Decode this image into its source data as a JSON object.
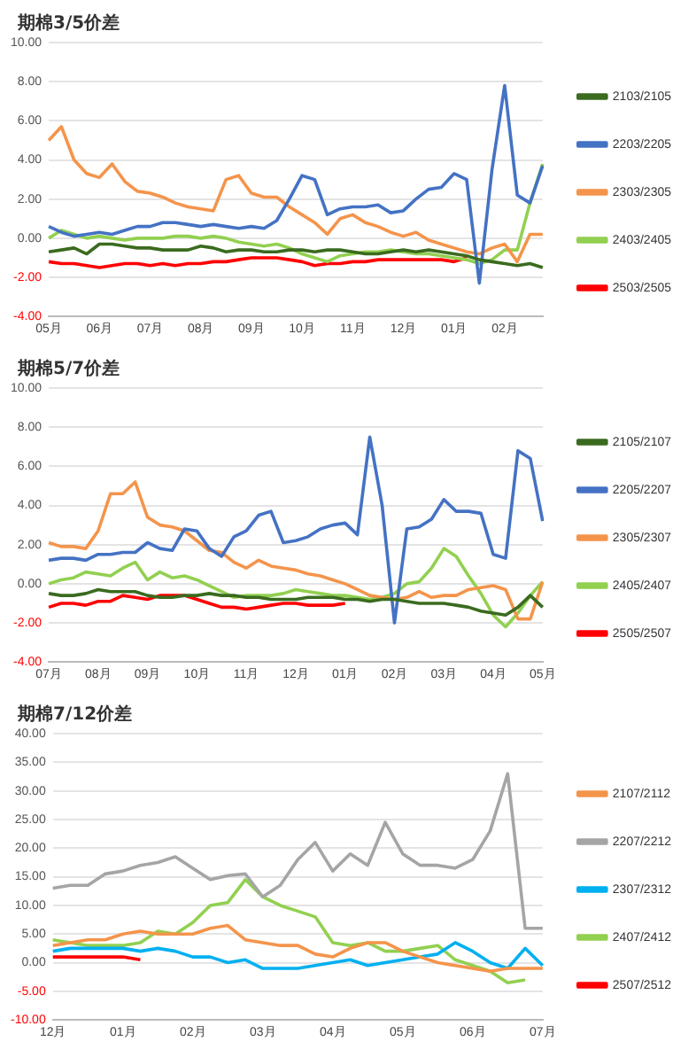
{
  "chart_data": [
    {
      "type": "line",
      "title": "期棉3/5价差",
      "categories": [
        "05月",
        null,
        null,
        null,
        "06月",
        null,
        null,
        null,
        "07月",
        null,
        null,
        null,
        "08月",
        null,
        null,
        null,
        "09月",
        null,
        null,
        null,
        "10月",
        null,
        null,
        null,
        "11月",
        null,
        null,
        null,
        "12月",
        null,
        null,
        null,
        "01月",
        null,
        null,
        null,
        "02月",
        null,
        null,
        null
      ],
      "ylim": [
        -4,
        10
      ],
      "yticks": [
        {
          "value": -4,
          "label": "-4.00"
        },
        {
          "value": -2,
          "label": "-2.00"
        },
        {
          "value": 0,
          "label": "0.00"
        },
        {
          "value": 2,
          "label": "2.00"
        },
        {
          "value": 4,
          "label": "4.00"
        },
        {
          "value": 6,
          "label": "6.00"
        },
        {
          "value": 8,
          "label": "8.00"
        },
        {
          "value": 10,
          "label": "10.00"
        }
      ],
      "grid": "y",
      "legend": "right",
      "marker": "none",
      "series": [
        {
          "name": "2103/2105",
          "color": "#3a6b1f",
          "values": [
            -0.7,
            -0.6,
            -0.5,
            -0.8,
            -0.3,
            -0.3,
            -0.4,
            -0.5,
            -0.5,
            -0.6,
            -0.6,
            -0.6,
            -0.4,
            -0.5,
            -0.7,
            -0.6,
            -0.6,
            -0.7,
            -0.7,
            -0.6,
            -0.6,
            -0.7,
            -0.6,
            -0.6,
            -0.7,
            -0.8,
            -0.8,
            -0.7,
            -0.6,
            -0.7,
            -0.6,
            -0.7,
            -0.8,
            -0.9,
            -1.1,
            -1.2,
            -1.3,
            -1.4,
            -1.3,
            -1.5
          ]
        },
        {
          "name": "2203/2205",
          "color": "#4472c4",
          "values": [
            0.6,
            0.3,
            0.1,
            0.2,
            0.3,
            0.2,
            0.4,
            0.6,
            0.6,
            0.8,
            0.8,
            0.7,
            0.6,
            0.7,
            0.6,
            0.5,
            0.6,
            0.5,
            0.9,
            2.0,
            3.2,
            3.0,
            1.2,
            1.5,
            1.6,
            1.6,
            1.7,
            1.3,
            1.4,
            2.0,
            2.5,
            2.6,
            3.3,
            3.0,
            -2.3,
            3.5,
            7.8,
            2.2,
            1.8,
            3.7
          ]
        },
        {
          "name": "2303/2305",
          "color": "#f4944b",
          "values": [
            5.0,
            5.7,
            4.0,
            3.3,
            3.1,
            3.8,
            2.9,
            2.4,
            2.3,
            2.1,
            1.8,
            1.6,
            1.5,
            1.4,
            3.0,
            3.2,
            2.3,
            2.1,
            2.1,
            1.6,
            1.2,
            0.8,
            0.2,
            1.0,
            1.2,
            0.8,
            0.6,
            0.3,
            0.1,
            0.3,
            -0.1,
            -0.3,
            -0.5,
            -0.7,
            -0.8,
            -0.5,
            -0.3,
            -1.2,
            0.2,
            0.2
          ]
        },
        {
          "name": "2403/2405",
          "color": "#92d050",
          "values": [
            0.0,
            0.4,
            0.2,
            0.0,
            0.1,
            0.0,
            -0.1,
            0.0,
            0.0,
            0.0,
            0.1,
            0.1,
            0.0,
            0.1,
            0.0,
            -0.2,
            -0.3,
            -0.4,
            -0.3,
            -0.5,
            -0.8,
            -1.0,
            -1.2,
            -0.9,
            -0.8,
            -0.7,
            -0.7,
            -0.6,
            -0.7,
            -0.8,
            -0.8,
            -0.9,
            -1.0,
            -1.1,
            -1.3,
            -1.1,
            -0.6,
            -0.6,
            1.8,
            3.8
          ]
        },
        {
          "name": "2503/2505",
          "color": "#ff0000",
          "values": [
            -1.2,
            -1.3,
            -1.3,
            -1.4,
            -1.5,
            -1.4,
            -1.3,
            -1.3,
            -1.4,
            -1.3,
            -1.4,
            -1.3,
            -1.3,
            -1.2,
            -1.2,
            -1.1,
            -1.0,
            -1.0,
            -1.0,
            -1.1,
            -1.2,
            -1.4,
            -1.3,
            -1.3,
            -1.2,
            -1.2,
            -1.1,
            -1.1,
            -1.1,
            -1.1,
            -1.1,
            -1.1,
            -1.2,
            -1.0,
            null,
            null,
            null,
            null,
            null,
            null
          ]
        }
      ]
    },
    {
      "type": "line",
      "title": "期棉5/7价差",
      "categories": [
        "07月",
        null,
        null,
        null,
        "08月",
        null,
        null,
        null,
        "09月",
        null,
        null,
        null,
        "10月",
        null,
        null,
        null,
        "11月",
        null,
        null,
        null,
        "12月",
        null,
        null,
        null,
        "01月",
        null,
        null,
        null,
        "02月",
        null,
        null,
        null,
        "03月",
        null,
        null,
        null,
        "04月",
        null,
        null,
        null,
        "05月"
      ],
      "ylim": [
        -4,
        10
      ],
      "yticks": [
        {
          "value": -4,
          "label": "-4.00"
        },
        {
          "value": -2,
          "label": "-2.00"
        },
        {
          "value": 0,
          "label": "0.00"
        },
        {
          "value": 2,
          "label": "2.00"
        },
        {
          "value": 4,
          "label": "4.00"
        },
        {
          "value": 6,
          "label": "6.00"
        },
        {
          "value": 8,
          "label": "8.00"
        },
        {
          "value": 10,
          "label": "10.00"
        }
      ],
      "grid": "y",
      "legend": "right",
      "marker": "none",
      "series": [
        {
          "name": "2105/2107",
          "color": "#3a6b1f",
          "values": [
            -0.5,
            -0.6,
            -0.6,
            -0.5,
            -0.3,
            -0.4,
            -0.4,
            -0.4,
            -0.6,
            -0.7,
            -0.7,
            -0.6,
            -0.6,
            -0.5,
            -0.6,
            -0.6,
            -0.7,
            -0.7,
            -0.8,
            -0.8,
            -0.8,
            -0.7,
            -0.7,
            -0.7,
            -0.8,
            -0.8,
            -0.9,
            -0.8,
            -0.8,
            -0.9,
            -1.0,
            -1.0,
            -1.0,
            -1.1,
            -1.2,
            -1.4,
            -1.5,
            -1.6,
            -1.2,
            -0.6,
            -1.2
          ]
        },
        {
          "name": "2205/2207",
          "color": "#4472c4",
          "values": [
            1.2,
            1.3,
            1.3,
            1.2,
            1.5,
            1.5,
            1.6,
            1.6,
            2.1,
            1.8,
            1.7,
            2.8,
            2.7,
            1.8,
            1.4,
            2.4,
            2.7,
            3.5,
            3.7,
            2.1,
            2.2,
            2.4,
            2.8,
            3.0,
            3.1,
            2.5,
            7.5,
            4.0,
            -2.0,
            2.8,
            2.9,
            3.3,
            4.3,
            3.7,
            3.7,
            3.6,
            1.5,
            1.3,
            6.8,
            6.4,
            3.2
          ]
        },
        {
          "name": "2305/2307",
          "color": "#f4944b",
          "values": [
            2.1,
            1.9,
            1.9,
            1.8,
            2.7,
            4.6,
            4.6,
            5.2,
            3.4,
            3.0,
            2.9,
            2.7,
            2.2,
            1.7,
            1.6,
            1.1,
            0.8,
            1.2,
            0.9,
            0.8,
            0.7,
            0.5,
            0.4,
            0.2,
            0.0,
            -0.3,
            -0.6,
            -0.7,
            -0.8,
            -0.7,
            -0.4,
            -0.7,
            -0.6,
            -0.6,
            -0.3,
            -0.2,
            -0.1,
            -0.3,
            -1.8,
            -1.8,
            0.1
          ]
        },
        {
          "name": "2405/2407",
          "color": "#92d050",
          "values": [
            0.0,
            0.2,
            0.3,
            0.6,
            0.5,
            0.4,
            0.8,
            1.1,
            0.2,
            0.6,
            0.3,
            0.4,
            0.2,
            -0.1,
            -0.4,
            -0.7,
            -0.6,
            -0.6,
            -0.6,
            -0.5,
            -0.3,
            -0.4,
            -0.5,
            -0.6,
            -0.6,
            -0.7,
            -0.8,
            -0.7,
            -0.5,
            0.0,
            0.1,
            0.8,
            1.8,
            1.4,
            0.4,
            -0.5,
            -1.6,
            -2.2,
            -1.5,
            -0.6,
            0.1
          ]
        },
        {
          "name": "2505/2507",
          "color": "#ff0000",
          "values": [
            -1.2,
            -1.0,
            -1.0,
            -1.1,
            -0.9,
            -0.9,
            -0.6,
            -0.7,
            -0.8,
            -0.6,
            -0.6,
            -0.6,
            -0.8,
            -1.0,
            -1.2,
            -1.2,
            -1.3,
            -1.2,
            -1.1,
            -1.0,
            -1.0,
            -1.1,
            -1.1,
            -1.1,
            -1.0,
            null,
            null,
            null,
            null,
            null,
            null,
            null,
            null,
            null,
            null,
            null,
            null,
            null,
            null,
            null,
            null
          ]
        }
      ]
    },
    {
      "type": "line",
      "title": "期棉7/12价差",
      "categories": [
        "12月",
        null,
        null,
        null,
        "01月",
        null,
        null,
        null,
        "02月",
        null,
        null,
        null,
        "03月",
        null,
        null,
        null,
        "04月",
        null,
        null,
        null,
        "05月",
        null,
        null,
        null,
        "06月",
        null,
        null,
        null,
        "07月"
      ],
      "ylim": [
        -10,
        40
      ],
      "yticks": [
        {
          "value": -10,
          "label": "-10.00"
        },
        {
          "value": -5,
          "label": "-5.00"
        },
        {
          "value": 0,
          "label": "0.00"
        },
        {
          "value": 5,
          "label": "5.00"
        },
        {
          "value": 10,
          "label": "10.00"
        },
        {
          "value": 15,
          "label": "15.00"
        },
        {
          "value": 20,
          "label": "20.00"
        },
        {
          "value": 25,
          "label": "25.00"
        },
        {
          "value": 30,
          "label": "30.00"
        },
        {
          "value": 35,
          "label": "35.00"
        },
        {
          "value": 40,
          "label": "40.00"
        }
      ],
      "grid": "y",
      "legend": "right",
      "marker": "none",
      "series": [
        {
          "name": "2107/2112",
          "color": "#f4944b",
          "values": [
            3.0,
            3.5,
            4.0,
            4.0,
            5.0,
            5.5,
            5.0,
            5.0,
            5.0,
            6.0,
            6.5,
            4.0,
            3.5,
            3.0,
            3.0,
            1.5,
            1.0,
            2.5,
            3.5,
            3.5,
            2.0,
            1.0,
            0.0,
            -0.5,
            -1.0,
            -1.5,
            -1.0,
            -1.0,
            -1.0
          ]
        },
        {
          "name": "2207/2212",
          "color": "#a5a5a5",
          "values": [
            13,
            13.5,
            13.5,
            15.5,
            16,
            17,
            17.5,
            18.5,
            16.5,
            14.5,
            15.2,
            15.5,
            11.5,
            13.5,
            18,
            21,
            16,
            19,
            17,
            24.5,
            19,
            17,
            17,
            16.5,
            18,
            23,
            33,
            6,
            6
          ]
        },
        {
          "name": "2307/2312",
          "color": "#00b0f0",
          "values": [
            2.0,
            2.5,
            2.5,
            2.5,
            2.5,
            2.0,
            2.5,
            2.0,
            1.0,
            1.0,
            0.0,
            0.5,
            -1.0,
            -1.0,
            -1.0,
            -0.5,
            0.0,
            0.5,
            -0.5,
            0.0,
            0.5,
            1.0,
            1.5,
            3.5,
            2.0,
            0.0,
            -1.0,
            2.5,
            -0.5
          ]
        },
        {
          "name": "2407/2412",
          "color": "#92d050",
          "values": [
            4.0,
            3.5,
            3.0,
            3.0,
            3.0,
            3.5,
            5.5,
            5.0,
            7.0,
            10.0,
            10.5,
            14.5,
            11.5,
            10.0,
            9.0,
            8.0,
            3.5,
            3.0,
            3.5,
            2.0,
            2.0,
            2.5,
            3.0,
            0.5,
            -0.5,
            -1.5,
            -3.5,
            -3.0,
            null
          ]
        },
        {
          "name": "2507/2512",
          "color": "#ff0000",
          "values": [
            1.0,
            1.0,
            1.0,
            1.0,
            1.0,
            0.5,
            null,
            null,
            null,
            null,
            null,
            null,
            null,
            null,
            null,
            null,
            null,
            null,
            null,
            null,
            null,
            null,
            null,
            null,
            null,
            null,
            null,
            null,
            null
          ]
        }
      ]
    }
  ]
}
